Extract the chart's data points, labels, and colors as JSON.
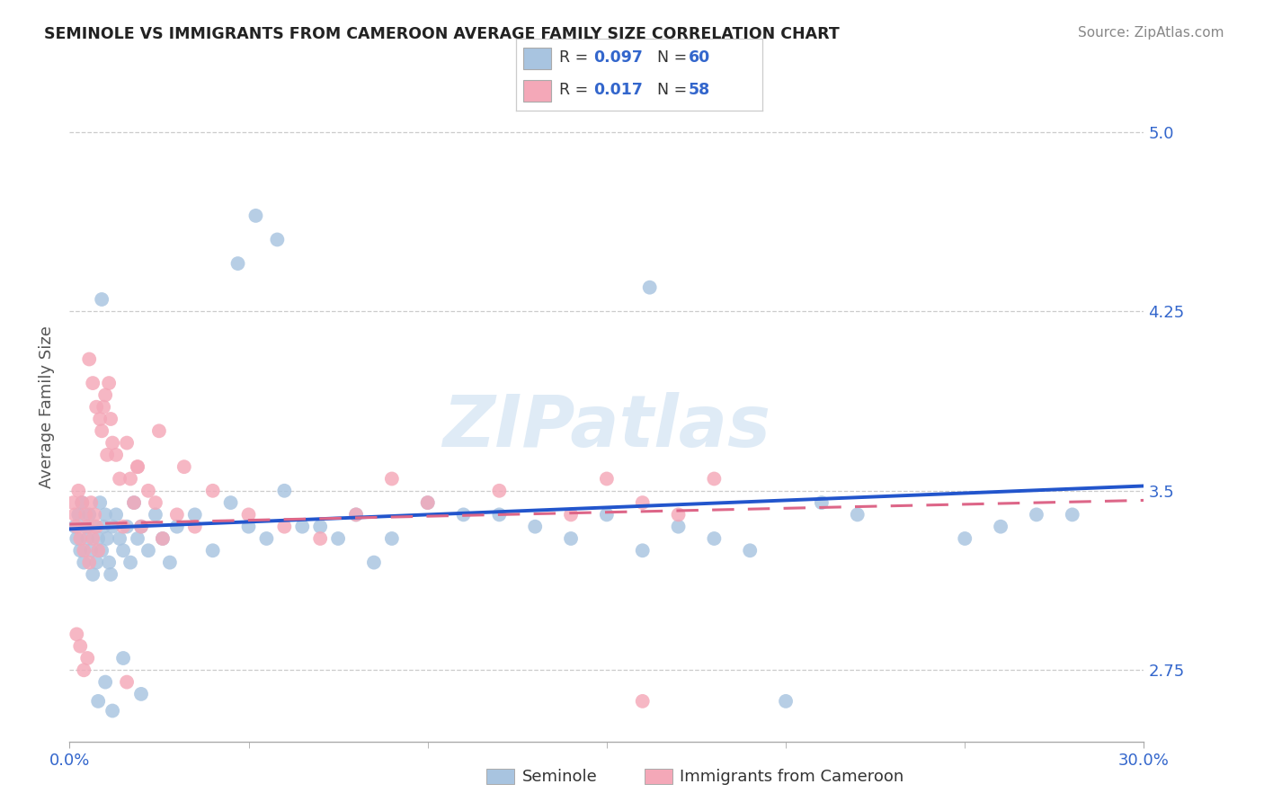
{
  "title": "SEMINOLE VS IMMIGRANTS FROM CAMEROON AVERAGE FAMILY SIZE CORRELATION CHART",
  "source": "Source: ZipAtlas.com",
  "ylabel": "Average Family Size",
  "xmin": 0.0,
  "xmax": 30.0,
  "ymin": 2.45,
  "ymax": 5.25,
  "yticks": [
    2.75,
    3.5,
    4.25,
    5.0
  ],
  "xtick_left": "0.0%",
  "xtick_right": "30.0%",
  "grid_color": "#cccccc",
  "bg_color": "#ffffff",
  "sem_color": "#a8c4e0",
  "cam_color": "#f4a8b8",
  "sem_line_color": "#2255cc",
  "cam_line_color": "#dd6688",
  "watermark": "ZIPatlas",
  "R_sem": "0.097",
  "N_sem": "60",
  "R_cam": "0.017",
  "N_cam": "58",
  "legend_label_1": "Seminole",
  "legend_label_2": "Immigrants from Cameroon",
  "title_color": "#222222",
  "source_color": "#888888",
  "axis_label_color": "#555555",
  "tick_value_color": "#3366cc",
  "R_label_color": "#333333",
  "sem_line_y0": 3.34,
  "sem_line_y1": 3.52,
  "cam_line_y0": 3.36,
  "cam_line_y1": 3.46,
  "seminole_x": [
    0.15,
    0.2,
    0.25,
    0.3,
    0.35,
    0.4,
    0.45,
    0.5,
    0.55,
    0.6,
    0.65,
    0.7,
    0.75,
    0.8,
    0.85,
    0.9,
    0.95,
    1.0,
    1.05,
    1.1,
    1.15,
    1.2,
    1.3,
    1.4,
    1.5,
    1.6,
    1.7,
    1.8,
    1.9,
    2.0,
    2.2,
    2.4,
    2.6,
    2.8,
    3.0,
    3.5,
    4.0,
    4.5,
    5.0,
    5.5,
    6.0,
    7.0,
    8.0,
    9.0,
    10.0,
    12.0,
    14.0,
    15.0,
    17.0,
    18.0,
    19.0,
    21.0,
    22.0,
    26.0,
    27.0,
    5.2,
    5.8,
    4.7,
    0.9,
    16.2
  ],
  "seminole_y": [
    3.35,
    3.3,
    3.4,
    3.25,
    3.45,
    3.2,
    3.35,
    3.3,
    3.4,
    3.25,
    3.15,
    3.35,
    3.2,
    3.3,
    3.45,
    3.25,
    3.35,
    3.4,
    3.3,
    3.2,
    3.15,
    3.35,
    3.4,
    3.3,
    3.25,
    3.35,
    3.2,
    3.45,
    3.3,
    3.35,
    3.25,
    3.4,
    3.3,
    3.2,
    3.35,
    3.4,
    3.25,
    3.45,
    3.35,
    3.3,
    3.5,
    3.35,
    3.4,
    3.3,
    3.45,
    3.4,
    3.3,
    3.4,
    3.35,
    3.3,
    3.25,
    3.45,
    3.4,
    3.35,
    3.4,
    4.65,
    4.55,
    4.45,
    4.3,
    4.35
  ],
  "seminole_low_x": [
    1.5,
    2.0,
    1.0,
    0.8,
    20.0,
    1.2
  ],
  "seminole_low_y": [
    2.8,
    2.65,
    2.7,
    2.62,
    2.62,
    2.58
  ],
  "seminole_mid_x": [
    6.5,
    7.5,
    8.5,
    11.0,
    13.0,
    16.0,
    25.0,
    28.0
  ],
  "seminole_mid_y": [
    3.35,
    3.3,
    3.2,
    3.4,
    3.35,
    3.25,
    3.3,
    3.4
  ],
  "cameroon_x": [
    0.1,
    0.15,
    0.2,
    0.25,
    0.3,
    0.35,
    0.4,
    0.45,
    0.5,
    0.55,
    0.6,
    0.65,
    0.7,
    0.75,
    0.8,
    0.85,
    0.9,
    0.95,
    1.0,
    1.05,
    1.1,
    1.15,
    1.2,
    1.3,
    1.4,
    1.5,
    1.6,
    1.7,
    1.8,
    1.9,
    2.0,
    2.2,
    2.4,
    2.6,
    3.0,
    3.5,
    4.0,
    5.0,
    6.0,
    7.0,
    8.0,
    9.0,
    10.0,
    12.0,
    14.0,
    15.0,
    16.0,
    17.0,
    18.0
  ],
  "cameroon_y": [
    3.45,
    3.4,
    3.35,
    3.5,
    3.3,
    3.45,
    3.25,
    3.4,
    3.35,
    3.2,
    3.45,
    3.3,
    3.4,
    3.35,
    3.25,
    3.8,
    3.75,
    3.85,
    3.9,
    3.65,
    3.95,
    3.8,
    3.7,
    3.65,
    3.55,
    3.35,
    3.7,
    3.55,
    3.45,
    3.6,
    3.35,
    3.5,
    3.45,
    3.3,
    3.4,
    3.35,
    3.5,
    3.4,
    3.35,
    3.3,
    3.4,
    3.55,
    3.45,
    3.5,
    3.4,
    3.55,
    3.45,
    3.4,
    3.55
  ],
  "cameroon_low_x": [
    0.3,
    0.5,
    16.0,
    0.2,
    0.4,
    1.6
  ],
  "cameroon_low_y": [
    2.85,
    2.8,
    2.62,
    2.9,
    2.75,
    2.7
  ],
  "cameroon_high_x": [
    0.55,
    0.65,
    0.75,
    1.9,
    2.5,
    3.2
  ],
  "cameroon_high_y": [
    4.05,
    3.95,
    3.85,
    3.6,
    3.75,
    3.6
  ]
}
